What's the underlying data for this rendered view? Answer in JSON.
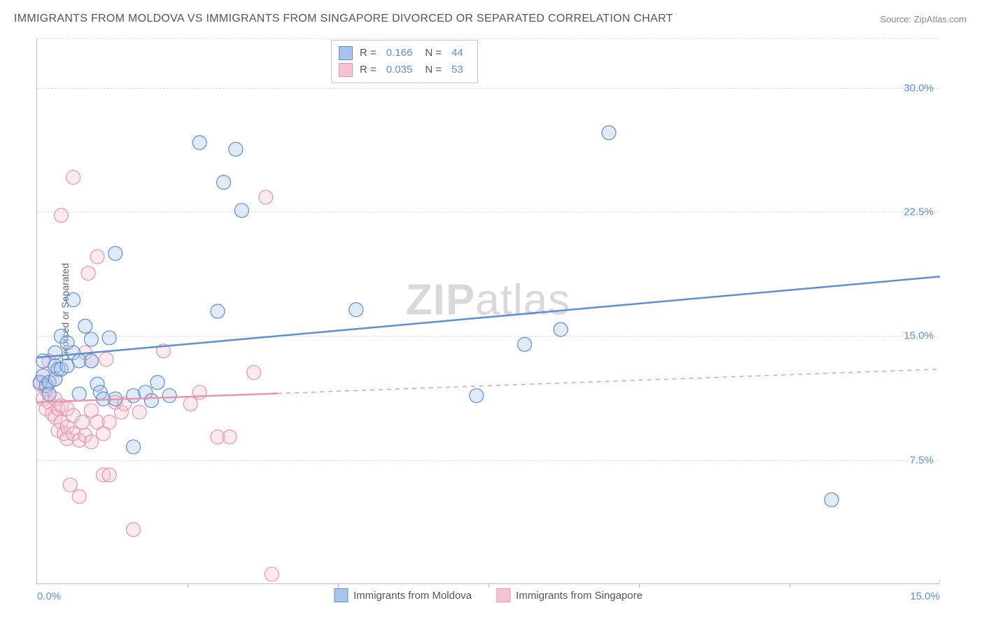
{
  "title": "IMMIGRANTS FROM MOLDOVA VS IMMIGRANTS FROM SINGAPORE DIVORCED OR SEPARATED CORRELATION CHART",
  "source": "Source: ZipAtlas.com",
  "watermark_zip": "ZIP",
  "watermark_atlas": "atlas",
  "y_axis_title": "Divorced or Separated",
  "chart": {
    "type": "scatter",
    "background_color": "#ffffff",
    "grid_color_dashed": "#dddddd",
    "axis_line_color": "#bbbbbb",
    "xlim": [
      0.0,
      15.0
    ],
    "ylim": [
      0.0,
      33.0
    ],
    "x_ticks": [
      0.0,
      15.0
    ],
    "x_tick_labels": [
      "0.0%",
      "15.0%"
    ],
    "x_minor_ticks": [
      2.5,
      5.0,
      7.5,
      10.0,
      12.5
    ],
    "y_ticks": [
      7.5,
      15.0,
      22.5,
      30.0
    ],
    "y_tick_labels": [
      "7.5%",
      "15.0%",
      "22.5%",
      "30.0%"
    ],
    "marker_radius": 10,
    "marker_stroke_width": 1.2,
    "marker_fill_opacity": 0.35,
    "trend_line_width": 2.5,
    "series": [
      {
        "name": "Immigrants from Moldova",
        "color_stroke": "#5b8fd6",
        "color_fill": "#a7c4ea",
        "R": "0.166",
        "N": "44",
        "trend": {
          "x1": 0.0,
          "y1": 13.7,
          "x2": 15.0,
          "y2": 18.6,
          "dash_from_x": null
        },
        "points": [
          [
            0.05,
            12.2
          ],
          [
            0.1,
            12.6
          ],
          [
            0.1,
            13.5
          ],
          [
            0.15,
            12.0
          ],
          [
            0.2,
            12.2
          ],
          [
            0.2,
            11.5
          ],
          [
            0.3,
            14.0
          ],
          [
            0.3,
            13.2
          ],
          [
            0.3,
            12.4
          ],
          [
            0.35,
            13.0
          ],
          [
            0.4,
            15.0
          ],
          [
            0.4,
            13.0
          ],
          [
            0.5,
            13.2
          ],
          [
            0.5,
            14.6
          ],
          [
            0.6,
            14.0
          ],
          [
            0.6,
            17.2
          ],
          [
            0.7,
            13.5
          ],
          [
            0.7,
            11.5
          ],
          [
            0.8,
            15.6
          ],
          [
            0.9,
            13.5
          ],
          [
            0.9,
            14.8
          ],
          [
            1.0,
            12.1
          ],
          [
            1.05,
            11.6
          ],
          [
            1.1,
            11.2
          ],
          [
            1.2,
            14.9
          ],
          [
            1.3,
            11.2
          ],
          [
            1.3,
            20.0
          ],
          [
            1.6,
            11.4
          ],
          [
            1.6,
            8.3
          ],
          [
            1.8,
            11.6
          ],
          [
            1.9,
            11.1
          ],
          [
            2.0,
            12.2
          ],
          [
            2.2,
            11.4
          ],
          [
            2.7,
            26.7
          ],
          [
            3.0,
            16.5
          ],
          [
            3.1,
            24.3
          ],
          [
            3.3,
            26.3
          ],
          [
            3.4,
            22.6
          ],
          [
            5.3,
            16.6
          ],
          [
            7.3,
            11.4
          ],
          [
            8.1,
            14.5
          ],
          [
            8.7,
            15.4
          ],
          [
            9.5,
            27.3
          ],
          [
            13.2,
            5.1
          ]
        ]
      },
      {
        "name": "Immigrants from Singapore",
        "color_stroke": "#e995a9",
        "color_fill": "#f5c3cf",
        "R": "0.035",
        "N": "53",
        "trend": {
          "x1": 0.0,
          "y1": 11.0,
          "x2": 15.0,
          "y2": 13.0,
          "dash_from_x": 4.0
        },
        "points": [
          [
            0.05,
            12.1
          ],
          [
            0.1,
            11.2
          ],
          [
            0.1,
            12.6
          ],
          [
            0.15,
            10.6
          ],
          [
            0.15,
            11.8
          ],
          [
            0.2,
            11.0
          ],
          [
            0.2,
            13.5
          ],
          [
            0.25,
            10.3
          ],
          [
            0.3,
            10.1
          ],
          [
            0.3,
            11.2
          ],
          [
            0.3,
            12.4
          ],
          [
            0.35,
            9.3
          ],
          [
            0.35,
            10.6
          ],
          [
            0.4,
            9.8
          ],
          [
            0.4,
            10.8
          ],
          [
            0.4,
            22.3
          ],
          [
            0.45,
            9.1
          ],
          [
            0.5,
            8.8
          ],
          [
            0.5,
            9.5
          ],
          [
            0.5,
            10.6
          ],
          [
            0.55,
            6.0
          ],
          [
            0.6,
            9.1
          ],
          [
            0.6,
            10.2
          ],
          [
            0.6,
            24.6
          ],
          [
            0.7,
            8.7
          ],
          [
            0.7,
            5.3
          ],
          [
            0.75,
            9.8
          ],
          [
            0.8,
            9.0
          ],
          [
            0.8,
            14.0
          ],
          [
            0.85,
            18.8
          ],
          [
            0.9,
            8.6
          ],
          [
            0.9,
            10.5
          ],
          [
            0.9,
            13.5
          ],
          [
            1.0,
            9.8
          ],
          [
            1.0,
            19.8
          ],
          [
            1.1,
            9.1
          ],
          [
            1.1,
            6.6
          ],
          [
            1.15,
            13.6
          ],
          [
            1.2,
            9.8
          ],
          [
            1.2,
            6.6
          ],
          [
            1.3,
            11.0
          ],
          [
            1.4,
            10.4
          ],
          [
            1.45,
            10.9
          ],
          [
            1.6,
            3.3
          ],
          [
            1.7,
            10.4
          ],
          [
            2.1,
            14.1
          ],
          [
            2.55,
            10.9
          ],
          [
            2.7,
            11.6
          ],
          [
            3.0,
            8.9
          ],
          [
            3.2,
            8.9
          ],
          [
            3.6,
            12.8
          ],
          [
            3.8,
            23.4
          ],
          [
            3.9,
            0.6
          ]
        ]
      }
    ]
  },
  "legend_top": {
    "r_label": "R =",
    "n_label": "N ="
  },
  "colors": {
    "text_gray": "#555555",
    "value_blue": "#5b8fd6"
  }
}
